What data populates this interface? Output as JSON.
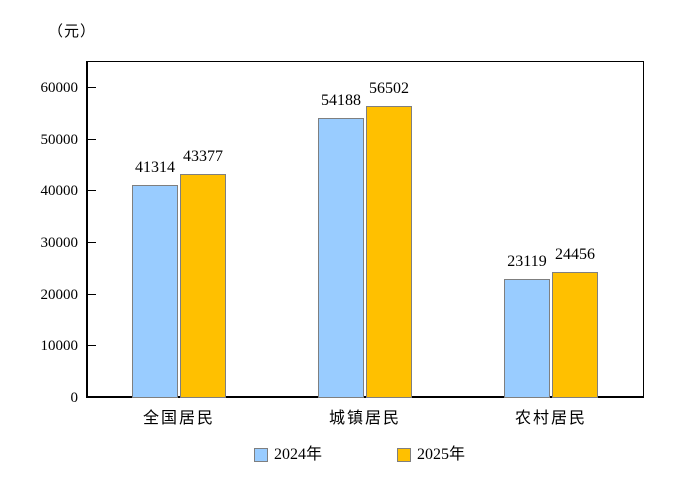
{
  "chart_data": {
    "type": "bar",
    "title": "",
    "unit_label": "（元）",
    "categories": [
      "全国居民",
      "城镇居民",
      "农村居民"
    ],
    "series": [
      {
        "name": "2024年",
        "color": "#99CCFF",
        "border_color": "#7F7F7F",
        "values": [
          41314,
          54188,
          23119
        ]
      },
      {
        "name": "2025年",
        "color": "#FFC000",
        "border_color": "#7F7F7F",
        "values": [
          43377,
          56502,
          24456
        ]
      }
    ],
    "ylim": [
      0,
      65000
    ],
    "yticks": [
      0,
      10000,
      20000,
      30000,
      40000,
      50000,
      60000
    ],
    "grid": false,
    "data_labels": true,
    "legend_position": "bottom",
    "axis_color": "#000000",
    "background": "#FFFFFF"
  }
}
